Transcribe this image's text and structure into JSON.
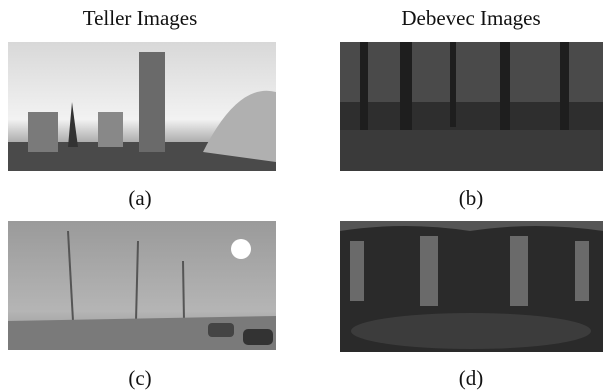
{
  "columns": [
    {
      "title": "Teller Images"
    },
    {
      "title": "Debevec Images"
    }
  ],
  "panels": [
    {
      "label": "(a)"
    },
    {
      "label": "(b)"
    },
    {
      "label": "(c)"
    },
    {
      "label": "(d)"
    }
  ]
}
